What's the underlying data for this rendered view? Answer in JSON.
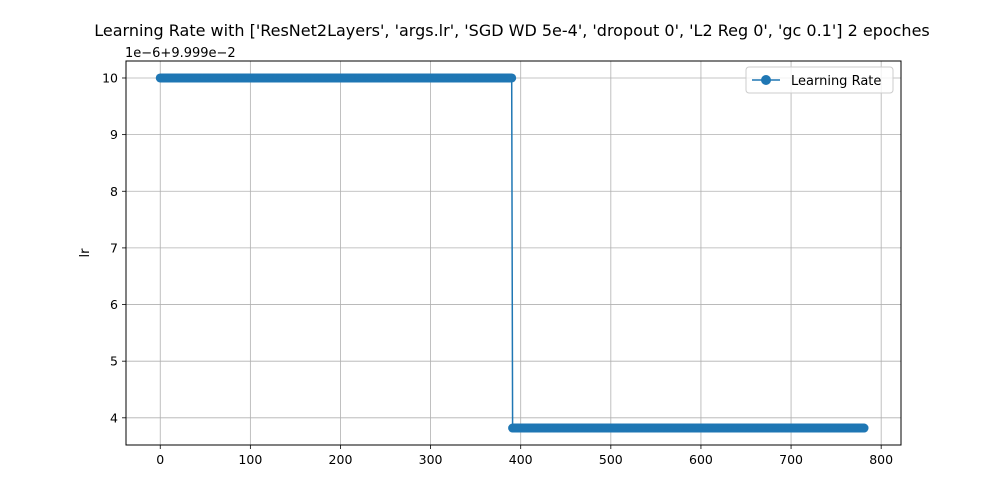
{
  "chart_data": {
    "type": "line",
    "title": "Learning Rate with ['ResNet2Layers', 'args.lr', 'SGD WD 5e-4', 'dropout 0', 'L2 Reg 0', 'gc 0.1'] 2 epoches",
    "xlabel": "",
    "ylabel": "lr",
    "y_offset_label": "1e−6+9.999e−2",
    "xlim": [
      -38,
      822
    ],
    "ylim": [
      3.52,
      10.3
    ],
    "x_ticks": [
      0,
      100,
      200,
      300,
      400,
      500,
      600,
      700,
      800
    ],
    "y_ticks": [
      4,
      5,
      6,
      7,
      8,
      9,
      10
    ],
    "grid": true,
    "legend_position": "top-right",
    "series": [
      {
        "name": "Learning Rate",
        "color": "#1f77b4",
        "marker": "circle",
        "segments": [
          {
            "x_start": 0,
            "x_end": 390,
            "y": 10.0
          },
          {
            "x_start": 391,
            "x_end": 781,
            "y": 3.82
          }
        ]
      }
    ]
  }
}
